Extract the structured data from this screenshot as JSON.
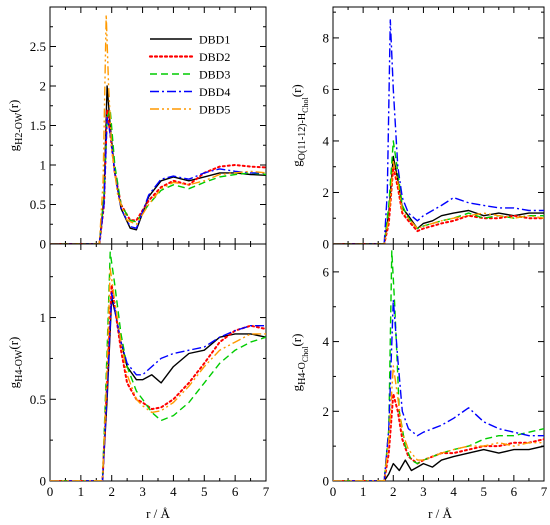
{
  "figure": {
    "xlabel_left": "r / Å",
    "xlabel_right": "r / Å"
  },
  "legend": [
    {
      "name": "DBD1",
      "color": "#000000",
      "dash": "solid"
    },
    {
      "name": "DBD2",
      "color": "#ff0000",
      "dash": "dotted"
    },
    {
      "name": "DBD3",
      "color": "#00cc00",
      "dash": "dashed"
    },
    {
      "name": "DBD4",
      "color": "#0000ff",
      "dash": "dashdot"
    },
    {
      "name": "DBD5",
      "color": "#ff9900",
      "dash": "dashdotdot"
    }
  ],
  "chart_data": [
    {
      "type": "line",
      "panel": "top-left",
      "ylabel_main": "g",
      "ylabel_sub": "H2-OW",
      "ylabel_tail": "(r)",
      "xlim": [
        0,
        7
      ],
      "ylim": [
        0,
        3.0
      ],
      "xticks": [
        0,
        1,
        2,
        3,
        4,
        5,
        6,
        7
      ],
      "xtick_labels": [
        "",
        "",
        "",
        "",
        "",
        "",
        "",
        ""
      ],
      "yticks": [
        0,
        0.5,
        1,
        1.5,
        2,
        2.5
      ],
      "ytick_labels": [
        "0",
        "0.5",
        "1",
        "1.5",
        "2",
        "2.5"
      ],
      "legend_position": "top-right",
      "series": [
        {
          "name": "DBD1",
          "x": [
            0,
            1.6,
            1.75,
            1.85,
            1.95,
            2.1,
            2.3,
            2.6,
            2.8,
            3.2,
            3.6,
            4.0,
            4.5,
            5.0,
            5.5,
            6.0,
            6.5,
            7.0
          ],
          "y": [
            0,
            0,
            0.6,
            2.0,
            1.5,
            0.9,
            0.45,
            0.2,
            0.18,
            0.6,
            0.8,
            0.85,
            0.8,
            0.85,
            0.9,
            0.9,
            0.88,
            0.87
          ]
        },
        {
          "name": "DBD2",
          "x": [
            0,
            1.6,
            1.75,
            1.85,
            1.95,
            2.1,
            2.3,
            2.6,
            2.8,
            3.2,
            3.6,
            4.0,
            4.5,
            5.0,
            5.5,
            6.0,
            6.5,
            7.0
          ],
          "y": [
            0,
            0,
            0.5,
            1.7,
            1.4,
            0.9,
            0.5,
            0.3,
            0.3,
            0.55,
            0.72,
            0.8,
            0.75,
            0.9,
            0.98,
            1.0,
            0.98,
            0.97
          ]
        },
        {
          "name": "DBD3",
          "x": [
            0,
            1.6,
            1.75,
            1.85,
            1.95,
            2.1,
            2.3,
            2.6,
            2.8,
            3.2,
            3.6,
            4.0,
            4.5,
            5.0,
            5.5,
            6.0,
            6.5,
            7.0
          ],
          "y": [
            0,
            0,
            0.6,
            1.6,
            1.7,
            1.0,
            0.5,
            0.3,
            0.28,
            0.5,
            0.68,
            0.75,
            0.7,
            0.78,
            0.85,
            0.88,
            0.9,
            0.88
          ]
        },
        {
          "name": "DBD4",
          "x": [
            0,
            1.6,
            1.75,
            1.85,
            1.95,
            2.1,
            2.3,
            2.6,
            2.8,
            3.2,
            3.6,
            4.0,
            4.5,
            5.0,
            5.5,
            6.0,
            6.5,
            7.0
          ],
          "y": [
            0,
            0,
            0.5,
            1.6,
            1.4,
            0.9,
            0.45,
            0.22,
            0.2,
            0.62,
            0.82,
            0.86,
            0.82,
            0.9,
            0.95,
            0.92,
            0.9,
            0.9
          ]
        },
        {
          "name": "DBD5",
          "x": [
            0,
            1.6,
            1.72,
            1.82,
            1.9,
            2.0,
            2.2,
            2.5,
            2.8,
            3.2,
            3.6,
            4.0,
            4.5,
            5.0,
            5.5,
            6.0,
            6.5,
            7.0
          ],
          "y": [
            0,
            0,
            0.8,
            2.9,
            2.0,
            1.2,
            0.6,
            0.3,
            0.25,
            0.5,
            0.7,
            0.78,
            0.75,
            0.8,
            0.88,
            0.9,
            0.92,
            0.9
          ]
        }
      ]
    },
    {
      "type": "line",
      "panel": "top-right",
      "ylabel_main": "g",
      "ylabel_sub": "O(11-12)-H",
      "ylabel_subsub": "Chol",
      "ylabel_tail": "(r)",
      "xlim": [
        0,
        7
      ],
      "ylim": [
        0,
        9.2
      ],
      "xticks": [
        0,
        1,
        2,
        3,
        4,
        5,
        6,
        7
      ],
      "xtick_labels": [
        "",
        "",
        "",
        "",
        "",
        "",
        "",
        ""
      ],
      "yticks": [
        0,
        2,
        4,
        6,
        8
      ],
      "ytick_labels": [
        "0",
        "2",
        "4",
        "6",
        "8"
      ],
      "series": [
        {
          "name": "DBD1",
          "x": [
            0,
            1.7,
            1.85,
            2.0,
            2.15,
            2.3,
            2.5,
            2.8,
            3.0,
            3.3,
            3.6,
            4.0,
            4.5,
            5.0,
            5.5,
            6.0,
            6.5,
            7.0
          ],
          "y": [
            0,
            0,
            1.2,
            3.4,
            2.5,
            1.4,
            1.1,
            0.6,
            0.8,
            0.9,
            1.1,
            1.2,
            1.3,
            1.1,
            1.2,
            1.1,
            1.2,
            1.2
          ]
        },
        {
          "name": "DBD2",
          "x": [
            0,
            1.7,
            1.85,
            2.0,
            2.15,
            2.3,
            2.5,
            2.8,
            3.0,
            3.3,
            3.6,
            4.0,
            4.5,
            5.0,
            5.5,
            6.0,
            6.5,
            7.0
          ],
          "y": [
            0,
            0,
            0.8,
            3.0,
            2.2,
            1.2,
            0.9,
            0.5,
            0.6,
            0.7,
            0.8,
            0.9,
            1.1,
            1.0,
            1.0,
            1.1,
            1.0,
            1.0
          ]
        },
        {
          "name": "DBD3",
          "x": [
            0,
            1.7,
            1.85,
            2.0,
            2.15,
            2.3,
            2.5,
            2.8,
            3.0,
            3.3,
            3.6,
            4.0,
            4.5,
            5.0,
            5.5,
            6.0,
            6.5,
            7.0
          ],
          "y": [
            0,
            0,
            1.5,
            4.0,
            2.8,
            1.5,
            1.0,
            0.6,
            0.7,
            0.8,
            0.9,
            1.0,
            1.2,
            1.0,
            1.1,
            1.0,
            1.1,
            1.1
          ]
        },
        {
          "name": "DBD4",
          "x": [
            0,
            1.7,
            1.8,
            1.9,
            2.0,
            2.15,
            2.3,
            2.5,
            2.8,
            3.0,
            3.3,
            3.6,
            4.0,
            4.5,
            5.0,
            5.5,
            6.0,
            6.5,
            7.0
          ],
          "y": [
            0,
            0,
            2.0,
            8.7,
            6.0,
            3.0,
            1.8,
            1.2,
            0.9,
            1.1,
            1.3,
            1.5,
            1.8,
            1.6,
            1.5,
            1.4,
            1.4,
            1.3,
            1.3
          ]
        },
        {
          "name": "DBD5",
          "x": [
            0,
            1.7,
            1.85,
            2.0,
            2.15,
            2.3,
            2.5,
            2.8,
            3.0,
            3.3,
            3.6,
            4.0,
            4.5,
            5.0,
            5.5,
            6.0,
            6.5,
            7.0
          ],
          "y": [
            0,
            0,
            1.0,
            3.2,
            2.4,
            1.3,
            1.0,
            0.6,
            0.7,
            0.8,
            0.9,
            1.0,
            1.1,
            1.2,
            1.1,
            1.0,
            1.1,
            1.0
          ]
        }
      ]
    },
    {
      "type": "line",
      "panel": "bottom-left",
      "ylabel_main": "g",
      "ylabel_sub": "H4-OW",
      "ylabel_tail": "(r)",
      "xlim": [
        0,
        7
      ],
      "ylim": [
        0,
        1.45
      ],
      "xticks": [
        0,
        1,
        2,
        3,
        4,
        5,
        6,
        7
      ],
      "xtick_labels": [
        "0",
        "1",
        "2",
        "3",
        "4",
        "5",
        "6",
        "7"
      ],
      "yticks": [
        0,
        0.5,
        1
      ],
      "ytick_labels": [
        "0",
        "0.5",
        "1"
      ],
      "series": [
        {
          "name": "DBD1",
          "x": [
            0,
            1.7,
            1.85,
            2.0,
            2.15,
            2.3,
            2.5,
            2.8,
            3.0,
            3.3,
            3.6,
            4.0,
            4.5,
            5.0,
            5.5,
            6.0,
            6.5,
            7.0
          ],
          "y": [
            0,
            0,
            0.5,
            1.12,
            1.0,
            0.85,
            0.7,
            0.62,
            0.62,
            0.65,
            0.6,
            0.7,
            0.78,
            0.8,
            0.88,
            0.9,
            0.9,
            0.88
          ]
        },
        {
          "name": "DBD2",
          "x": [
            0,
            1.7,
            1.85,
            2.0,
            2.15,
            2.3,
            2.5,
            2.8,
            3.0,
            3.3,
            3.6,
            4.0,
            4.5,
            5.0,
            5.5,
            6.0,
            6.5,
            7.0
          ],
          "y": [
            0,
            0,
            0.6,
            1.2,
            1.0,
            0.8,
            0.6,
            0.5,
            0.48,
            0.44,
            0.45,
            0.5,
            0.6,
            0.72,
            0.85,
            0.92,
            0.95,
            0.93
          ]
        },
        {
          "name": "DBD3",
          "x": [
            0,
            1.7,
            1.85,
            1.95,
            2.1,
            2.3,
            2.5,
            2.8,
            3.0,
            3.3,
            3.6,
            4.0,
            4.5,
            5.0,
            5.5,
            6.0,
            6.5,
            7.0
          ],
          "y": [
            0,
            0,
            0.8,
            1.4,
            1.2,
            0.9,
            0.7,
            0.55,
            0.5,
            0.42,
            0.37,
            0.4,
            0.48,
            0.6,
            0.72,
            0.8,
            0.85,
            0.88
          ]
        },
        {
          "name": "DBD4",
          "x": [
            0,
            1.7,
            1.85,
            2.0,
            2.15,
            2.3,
            2.5,
            2.8,
            3.0,
            3.3,
            3.6,
            4.0,
            4.5,
            5.0,
            5.5,
            6.0,
            6.5,
            7.0
          ],
          "y": [
            0,
            0,
            0.55,
            1.15,
            1.0,
            0.85,
            0.72,
            0.65,
            0.65,
            0.7,
            0.75,
            0.78,
            0.8,
            0.82,
            0.88,
            0.92,
            0.95,
            0.95
          ]
        },
        {
          "name": "DBD5",
          "x": [
            0,
            1.7,
            1.85,
            1.95,
            2.1,
            2.3,
            2.5,
            2.8,
            3.0,
            3.3,
            3.6,
            4.0,
            4.5,
            5.0,
            5.5,
            6.0,
            6.5,
            7.0
          ],
          "y": [
            0,
            0,
            0.7,
            1.3,
            1.1,
            0.85,
            0.65,
            0.5,
            0.46,
            0.42,
            0.43,
            0.48,
            0.58,
            0.7,
            0.8,
            0.85,
            0.9,
            0.9
          ]
        }
      ]
    },
    {
      "type": "line",
      "panel": "bottom-right",
      "ylabel_main": "g",
      "ylabel_sub": "H4-O",
      "ylabel_subsub": "Chol",
      "ylabel_tail": "(r)",
      "xlim": [
        0,
        7
      ],
      "ylim": [
        0,
        6.8
      ],
      "xticks": [
        0,
        1,
        2,
        3,
        4,
        5,
        6,
        7
      ],
      "xtick_labels": [
        "0",
        "1",
        "2",
        "3",
        "4",
        "5",
        "6",
        "7"
      ],
      "yticks": [
        0,
        2,
        4,
        6
      ],
      "ytick_labels": [
        "0",
        "2",
        "4",
        "6"
      ],
      "series": [
        {
          "name": "DBD1",
          "x": [
            0,
            1.7,
            1.85,
            2.0,
            2.2,
            2.4,
            2.6,
            2.8,
            3.0,
            3.3,
            3.6,
            4.0,
            4.5,
            5.0,
            5.5,
            6.0,
            6.5,
            7.0
          ],
          "y": [
            0,
            0,
            0.2,
            0.5,
            0.3,
            0.6,
            0.3,
            0.4,
            0.5,
            0.4,
            0.6,
            0.7,
            0.8,
            0.9,
            0.8,
            0.9,
            0.9,
            1.0
          ]
        },
        {
          "name": "DBD2",
          "x": [
            0,
            1.7,
            1.85,
            2.0,
            2.15,
            2.3,
            2.5,
            2.8,
            3.0,
            3.3,
            3.6,
            4.0,
            4.5,
            5.0,
            5.5,
            6.0,
            6.5,
            7.0
          ],
          "y": [
            0,
            0,
            0.8,
            2.5,
            2.0,
            1.2,
            0.7,
            0.5,
            0.6,
            0.7,
            0.8,
            0.8,
            0.9,
            1.0,
            1.0,
            1.1,
            1.1,
            1.2
          ]
        },
        {
          "name": "DBD3",
          "x": [
            0,
            1.7,
            1.85,
            1.95,
            2.05,
            2.2,
            2.4,
            2.6,
            2.8,
            3.0,
            3.3,
            3.6,
            4.0,
            4.5,
            5.0,
            5.5,
            6.0,
            6.5,
            7.0
          ],
          "y": [
            0,
            0,
            1.5,
            6.6,
            5.0,
            2.0,
            1.0,
            0.6,
            0.5,
            0.6,
            0.7,
            0.8,
            0.9,
            1.0,
            1.2,
            1.3,
            1.3,
            1.4,
            1.5
          ]
        },
        {
          "name": "DBD4",
          "x": [
            0,
            1.7,
            1.85,
            2.0,
            2.15,
            2.3,
            2.5,
            2.8,
            3.0,
            3.3,
            3.6,
            4.0,
            4.5,
            5.0,
            5.5,
            6.0,
            6.5,
            7.0
          ],
          "y": [
            0,
            0,
            1.5,
            5.2,
            3.5,
            2.0,
            1.5,
            1.3,
            1.4,
            1.5,
            1.6,
            1.8,
            2.1,
            1.7,
            1.5,
            1.4,
            1.3,
            1.3
          ]
        },
        {
          "name": "DBD5",
          "x": [
            0,
            1.7,
            1.85,
            2.0,
            2.15,
            2.3,
            2.5,
            2.8,
            3.0,
            3.3,
            3.6,
            4.0,
            4.5,
            5.0,
            5.5,
            6.0,
            6.5,
            7.0
          ],
          "y": [
            0,
            0,
            1.2,
            3.3,
            2.4,
            1.4,
            0.9,
            0.6,
            0.6,
            0.7,
            0.8,
            0.9,
            1.0,
            1.0,
            1.1,
            1.0,
            1.1,
            1.1
          ]
        }
      ]
    }
  ]
}
